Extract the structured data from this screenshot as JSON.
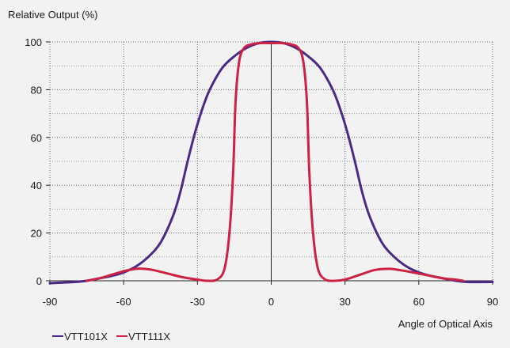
{
  "chart_data": {
    "type": "line",
    "title": "",
    "ylabel": "Relative Output (%)",
    "xlabel": "Angle of Optical Axis",
    "xlim": [
      -90,
      90
    ],
    "ylim": [
      0,
      100
    ],
    "xticks": [
      -90,
      -60,
      -30,
      0,
      30,
      60,
      90
    ],
    "yticks": [
      0,
      20,
      40,
      60,
      80,
      100
    ],
    "grid": true,
    "legend_position": "bottom-left",
    "series": [
      {
        "name": "VTT101X",
        "color": "#4b2a86",
        "points": [
          [
            -90,
            -1
          ],
          [
            -80,
            -0.5
          ],
          [
            -75,
            0
          ],
          [
            -70,
            1
          ],
          [
            -65,
            2
          ],
          [
            -60,
            3.5
          ],
          [
            -55,
            6
          ],
          [
            -50,
            10
          ],
          [
            -45,
            16
          ],
          [
            -40,
            27
          ],
          [
            -37,
            37
          ],
          [
            -34,
            50
          ],
          [
            -31,
            62
          ],
          [
            -28,
            72
          ],
          [
            -25,
            80
          ],
          [
            -20,
            89
          ],
          [
            -15,
            94
          ],
          [
            -10,
            97.5
          ],
          [
            -5,
            99.5
          ],
          [
            0,
            100
          ],
          [
            5,
            99.5
          ],
          [
            10,
            97.5
          ],
          [
            15,
            94
          ],
          [
            20,
            89
          ],
          [
            25,
            80
          ],
          [
            28,
            72
          ],
          [
            31,
            62
          ],
          [
            34,
            50
          ],
          [
            37,
            37
          ],
          [
            40,
            27
          ],
          [
            45,
            16
          ],
          [
            50,
            10
          ],
          [
            55,
            6
          ],
          [
            60,
            3.5
          ],
          [
            65,
            2
          ],
          [
            70,
            1
          ],
          [
            75,
            0
          ],
          [
            80,
            -0.5
          ],
          [
            90,
            -0.5
          ]
        ]
      },
      {
        "name": "VTT111X",
        "color": "#cc2244",
        "points": [
          [
            -75,
            0
          ],
          [
            -70,
            1
          ],
          [
            -65,
            2.5
          ],
          [
            -60,
            4
          ],
          [
            -55,
            5
          ],
          [
            -52,
            5
          ],
          [
            -48,
            4.5
          ],
          [
            -42,
            3
          ],
          [
            -36,
            1.5
          ],
          [
            -30,
            0.5
          ],
          [
            -26,
            0
          ],
          [
            -22,
            0.5
          ],
          [
            -19,
            5
          ],
          [
            -17,
            20
          ],
          [
            -15.5,
            45
          ],
          [
            -14.5,
            75
          ],
          [
            -13,
            92
          ],
          [
            -11,
            97.5
          ],
          [
            -8,
            99
          ],
          [
            -4,
            99.5
          ],
          [
            0,
            99.5
          ],
          [
            4,
            99.5
          ],
          [
            8,
            99
          ],
          [
            11,
            97.5
          ],
          [
            13,
            92
          ],
          [
            14.5,
            75
          ],
          [
            15.5,
            45
          ],
          [
            17,
            20
          ],
          [
            19,
            5
          ],
          [
            22,
            0.5
          ],
          [
            26,
            0
          ],
          [
            30,
            0.5
          ],
          [
            36,
            2.5
          ],
          [
            42,
            4.5
          ],
          [
            48,
            5
          ],
          [
            52,
            4.5
          ],
          [
            55,
            4
          ],
          [
            60,
            3
          ],
          [
            65,
            2
          ],
          [
            70,
            1
          ],
          [
            75,
            0.5
          ],
          [
            78,
            0
          ]
        ]
      }
    ]
  }
}
